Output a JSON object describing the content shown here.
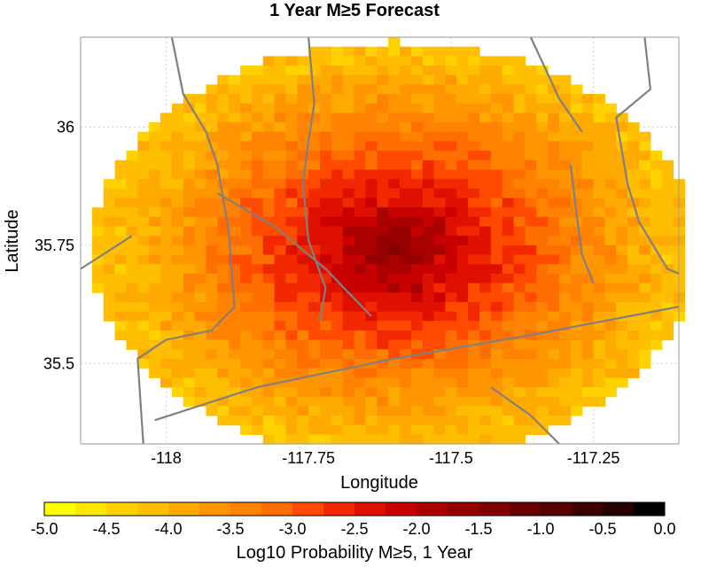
{
  "chart_data": {
    "type": "heatmap",
    "title": "1 Year M≥5 Forecast",
    "xlabel": "Longitude",
    "ylabel": "Latitude",
    "xlim": [
      -118.15,
      -117.1
    ],
    "ylim": [
      35.33,
      36.19
    ],
    "x_ticks": [
      {
        "value": -118,
        "label": "-118"
      },
      {
        "value": -117.75,
        "label": "-117.75"
      },
      {
        "value": -117.5,
        "label": "-117.5"
      },
      {
        "value": -117.25,
        "label": "-117.25"
      }
    ],
    "y_ticks": [
      {
        "value": 36,
        "label": "36"
      },
      {
        "value": 35.75,
        "label": "35.75"
      },
      {
        "value": 35.5,
        "label": "35.5"
      }
    ],
    "grid": true,
    "cell_size_deg": 0.02,
    "field": {
      "center_lon": -117.6,
      "center_lat": 35.74,
      "peak_log10": -1.55,
      "edge_log10": -4.2,
      "extent_lon": 0.53,
      "extent_lat": 0.44
    },
    "colorbar": {
      "label": "Log10 Probability M≥5, 1 Year",
      "min": -5.0,
      "max": 0.0,
      "steps": 20,
      "ticks": [
        "-5.0",
        "-4.5",
        "-4.0",
        "-3.5",
        "-3.0",
        "-2.5",
        "-2.0",
        "-1.5",
        "-1.0",
        "-0.5",
        "0.0"
      ],
      "colors": [
        "#ffff00",
        "#ffe800",
        "#ffd200",
        "#ffbe00",
        "#ffaa00",
        "#ff9600",
        "#ff8200",
        "#ff6e00",
        "#ff4a00",
        "#f22800",
        "#e01000",
        "#c80000",
        "#aa0000",
        "#960000",
        "#820000",
        "#6c0000",
        "#560000",
        "#3c0000",
        "#240000",
        "#000000"
      ]
    },
    "faults": [
      [
        [
          -117.99,
          36.19
        ],
        [
          -117.97,
          36.07
        ],
        [
          -117.93,
          35.99
        ],
        [
          -117.91,
          35.92
        ],
        [
          -117.89,
          35.78
        ],
        [
          -117.88,
          35.62
        ],
        [
          -117.92,
          35.57
        ],
        [
          -118.0,
          35.55
        ],
        [
          -118.05,
          35.51
        ],
        [
          -118.04,
          35.33
        ]
      ],
      [
        [
          -117.75,
          36.19
        ],
        [
          -117.74,
          36.05
        ],
        [
          -117.75,
          35.97
        ],
        [
          -117.76,
          35.88
        ],
        [
          -117.75,
          35.76
        ],
        [
          -117.72,
          35.66
        ],
        [
          -117.73,
          35.59
        ]
      ],
      [
        [
          -117.91,
          35.86
        ],
        [
          -117.81,
          35.79
        ],
        [
          -117.72,
          35.7
        ],
        [
          -117.64,
          35.6
        ]
      ],
      [
        [
          -117.36,
          36.19
        ],
        [
          -117.31,
          36.06
        ],
        [
          -117.27,
          35.99
        ]
      ],
      [
        [
          -117.16,
          36.19
        ],
        [
          -117.15,
          36.08
        ],
        [
          -117.21,
          36.02
        ],
        [
          -117.19,
          35.88
        ],
        [
          -117.17,
          35.8
        ],
        [
          -117.12,
          35.7
        ],
        [
          -117.1,
          35.69
        ]
      ],
      [
        [
          -117.29,
          35.92
        ],
        [
          -117.28,
          35.82
        ],
        [
          -117.27,
          35.73
        ],
        [
          -117.25,
          35.67
        ]
      ],
      [
        [
          -117.1,
          35.62
        ],
        [
          -117.36,
          35.56
        ],
        [
          -117.6,
          35.51
        ],
        [
          -117.84,
          35.45
        ],
        [
          -118.02,
          35.38
        ]
      ],
      [
        [
          -117.43,
          35.45
        ],
        [
          -117.36,
          35.39
        ],
        [
          -117.31,
          35.33
        ]
      ],
      [
        [
          -118.15,
          35.7
        ],
        [
          -118.06,
          35.77
        ]
      ]
    ]
  }
}
